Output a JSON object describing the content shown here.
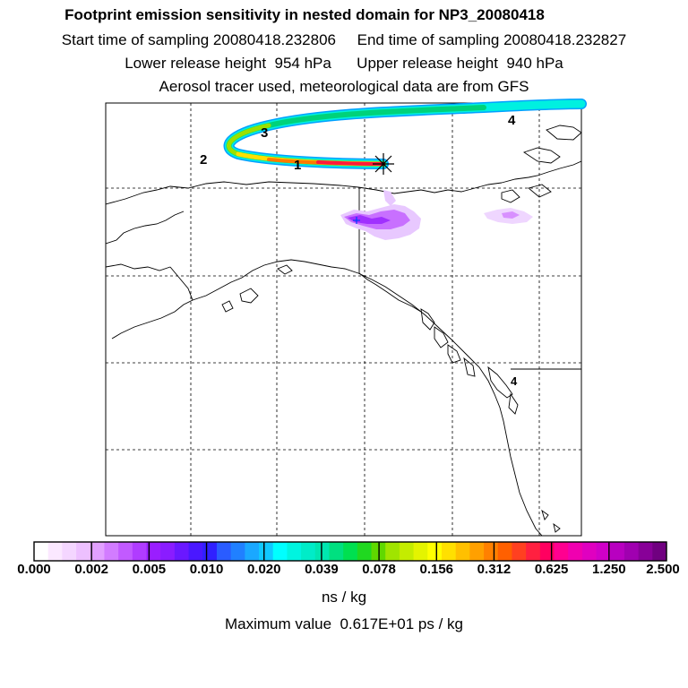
{
  "header": {
    "title": "Footprint emission sensitivity in nested domain for NP3_20080418",
    "line2": "Start time of sampling 20080418.232806     End time of sampling 20080418.232827",
    "line3": "Lower release height  954 hPa      Upper release height  940 hPa",
    "line4": "Aerosol tracer used, meteorological data are from GFS"
  },
  "map": {
    "trajectory_labels": [
      "1",
      "2",
      "3",
      "4"
    ],
    "release_marker": "star-marker",
    "plume_colors": [
      "#ff1a3c",
      "#ff7a00",
      "#ffe000",
      "#9be000",
      "#00d27a",
      "#00f0e0",
      "#00a0ff"
    ],
    "footprint_colors": [
      "#e8c8ff",
      "#c870ff",
      "#a030ff"
    ]
  },
  "colorbar": {
    "tick_labels": [
      "0.000",
      "0.002",
      "0.005",
      "0.010",
      "0.020",
      "0.039",
      "0.078",
      "0.156",
      "0.312",
      "0.625",
      "1.250",
      "2.500"
    ],
    "colors": [
      "#ffffff",
      "#fbe8ff",
      "#f4d6ff",
      "#edc0ff",
      "#e2a0ff",
      "#d27cff",
      "#c25aff",
      "#b03cff",
      "#9a1eff",
      "#8a1cff",
      "#6a18ff",
      "#4a18ff",
      "#3020ff",
      "#2a5cff",
      "#2080ff",
      "#1aa8ff",
      "#10c8ff",
      "#00ffff",
      "#00f4e0",
      "#00ecc8",
      "#00e6b0",
      "#00e080",
      "#00e050",
      "#20d820",
      "#60d800",
      "#a0e400",
      "#c4ec00",
      "#e4f400",
      "#ffff00",
      "#ffe000",
      "#ffc000",
      "#ffa000",
      "#ff8000",
      "#ff6000",
      "#ff4020",
      "#ff2040",
      "#ff0060",
      "#ff0090",
      "#f000b0",
      "#e000c0",
      "#d000c8",
      "#b800c0",
      "#a000b0",
      "#880098",
      "#700080"
    ],
    "units": "ns / kg"
  },
  "footer": {
    "max_value": "Maximum value  0.617E+01 ps / kg"
  }
}
